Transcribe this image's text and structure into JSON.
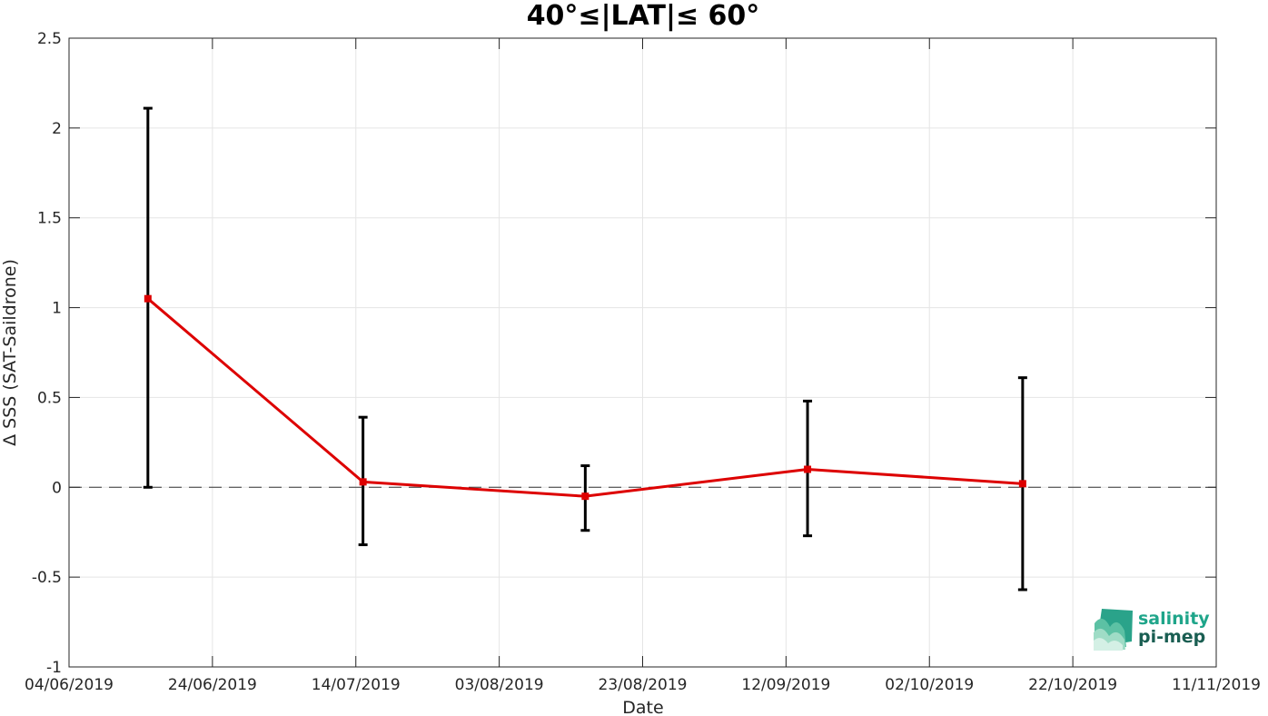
{
  "chart_data": {
    "type": "line",
    "title": "40°≤|LAT|≤ 60°",
    "xlabel": "Date",
    "ylabel": "Δ SSS (SAT-Saildrone)",
    "xlim": [
      "2019-06-04",
      "2019-11-11"
    ],
    "ylim": [
      -1,
      2.5
    ],
    "x_ticks": [
      "04/06/2019",
      "24/06/2019",
      "14/07/2019",
      "03/08/2019",
      "23/08/2019",
      "12/09/2019",
      "02/10/2019",
      "22/10/2019",
      "11/11/2019"
    ],
    "y_ticks": [
      "-1",
      "-0.5",
      "0",
      "0.5",
      "1",
      "1.5",
      "2",
      "2.5"
    ],
    "grid": true,
    "reference_line": 0,
    "series": [
      {
        "x": [
          "2019-06-15",
          "2019-07-15",
          "2019-08-15",
          "2019-09-15",
          "2019-10-15"
        ],
        "values": [
          1.05,
          0.03,
          -0.05,
          0.1,
          0.02
        ],
        "error_low": [
          0.0,
          -0.32,
          -0.24,
          -0.27,
          -0.57
        ],
        "error_high": [
          2.11,
          0.39,
          0.12,
          0.48,
          0.61
        ],
        "color": "#dd0000"
      }
    ]
  },
  "logo": {
    "line1": "salinity",
    "line2": "pi-mep",
    "line1_color": "#1fa58a",
    "line2_color": "#1a5e52"
  }
}
